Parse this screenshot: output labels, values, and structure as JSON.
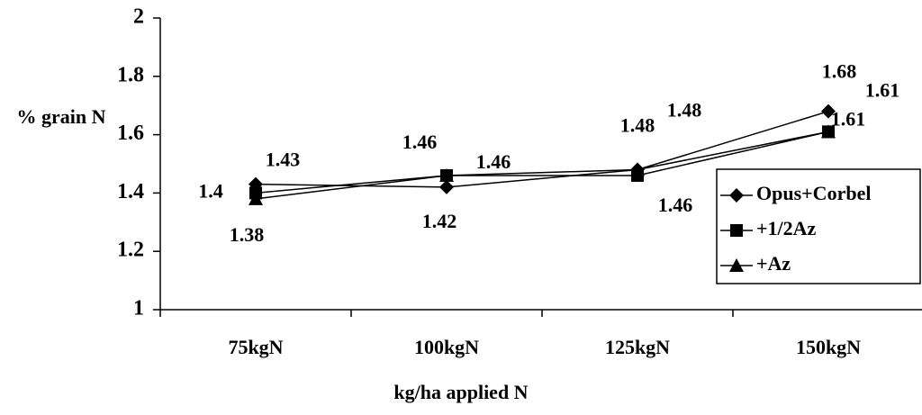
{
  "chart_data": {
    "type": "line",
    "xlabel": "kg/ha applied N",
    "ylabel": "% grain N",
    "categories": [
      "75kgN",
      "100kgN",
      "125kgN",
      "150kgN"
    ],
    "series": [
      {
        "name": "Opus+Corbel",
        "color": "#000000",
        "marker": "diamond",
        "values": [
          1.43,
          1.42,
          1.48,
          1.68
        ]
      },
      {
        "name": "+1/2Az",
        "color": "#000000",
        "marker": "square",
        "values": [
          1.4,
          1.46,
          1.46,
          1.61
        ]
      },
      {
        "name": "+Az",
        "color": "#000000",
        "marker": "triangle",
        "values": [
          1.38,
          1.46,
          1.48,
          1.61
        ]
      }
    ],
    "ylim": [
      1,
      2
    ],
    "yticks": [
      1,
      1.2,
      1.4,
      1.6,
      1.8,
      2
    ],
    "grid": false,
    "legend": "right"
  }
}
